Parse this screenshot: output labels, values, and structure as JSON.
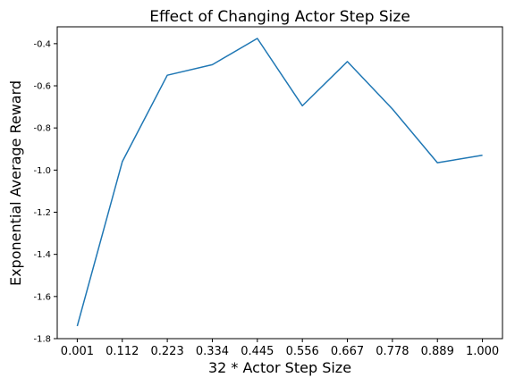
{
  "chart_data": {
    "type": "line",
    "title": "Effect of Changing Actor Step Size",
    "xlabel": "32 * Actor Step Size",
    "ylabel": "Exponential Average Reward",
    "categories": [
      "0.001",
      "0.112",
      "0.223",
      "0.334",
      "0.445",
      "0.556",
      "0.667",
      "0.778",
      "0.889",
      "1.000"
    ],
    "yticks": [
      "-1.8",
      "-1.6",
      "-1.4",
      "-1.2",
      "-1.0",
      "-0.8",
      "-0.6",
      "-0.4"
    ],
    "ylim": [
      -1.8,
      -0.32
    ],
    "grid": false,
    "series": [
      {
        "values": [
          -1.74,
          -0.96,
          -0.55,
          -0.5,
          -0.375,
          -0.695,
          -0.485,
          -0.71,
          -0.965,
          -0.93
        ],
        "color": "#1f77b4"
      }
    ]
  }
}
